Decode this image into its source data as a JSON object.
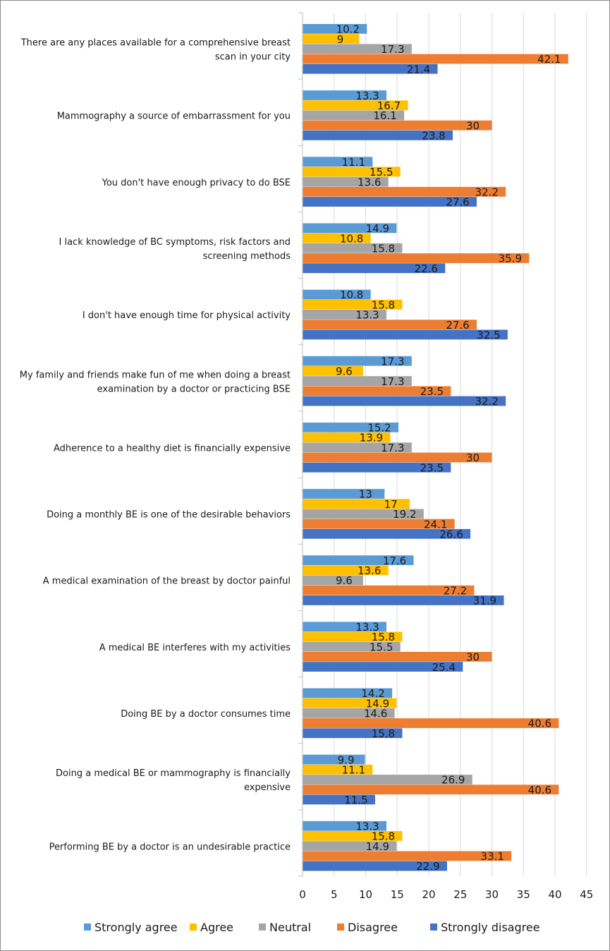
{
  "chart_data": {
    "type": "bar",
    "orientation": "horizontal",
    "title": "",
    "xlabel": "",
    "ylabel": "",
    "xlim": [
      0,
      45
    ],
    "xticks": [
      0,
      5,
      10,
      15,
      20,
      25,
      30,
      35,
      40,
      45
    ],
    "grid": "vertical",
    "legend_position": "bottom",
    "categories": [
      [
        "There are any places available for a comprehensive breast",
        "scan in your city"
      ],
      [
        "Mammography a source of embarrassment for you"
      ],
      [
        "You don't have enough privacy to do BSE"
      ],
      [
        "I lack knowledge of BC symptoms, risk factors and",
        "screening methods"
      ],
      [
        "I don't have enough time for physical activity"
      ],
      [
        "My family and friends make fun of me when doing a breast",
        "examination by a doctor or practicing BSE"
      ],
      [
        "Adherence to a healthy diet is financially expensive"
      ],
      [
        "Doing a monthly BE is one of the desirable behaviors"
      ],
      [
        "A medical examination of the breast by doctor  painful"
      ],
      [
        "A medical BE  interferes with my activities"
      ],
      [
        "Doing   BE by a doctor consumes time"
      ],
      [
        "Doing a medical BE or mammography is financially",
        "expensive"
      ],
      [
        "Performing BE by a doctor is an undesirable practice"
      ]
    ],
    "series": [
      {
        "name": "Strongly agree",
        "color": "#5b9bd5",
        "values": [
          10.2,
          13.3,
          11.1,
          14.9,
          10.8,
          17.3,
          15.2,
          13,
          17.6,
          13.3,
          14.2,
          9.9,
          13.3
        ]
      },
      {
        "name": "Agree",
        "color": "#ffc000",
        "values": [
          9,
          16.7,
          15.5,
          10.8,
          15.8,
          9.6,
          13.9,
          17,
          13.6,
          15.8,
          14.9,
          11.1,
          15.8
        ]
      },
      {
        "name": "Neutral",
        "color": "#a5a5a5",
        "values": [
          17.3,
          16.1,
          13.6,
          15.8,
          13.3,
          17.3,
          17.3,
          19.2,
          9.6,
          15.5,
          14.6,
          26.9,
          14.9
        ]
      },
      {
        "name": "Disagree",
        "color": "#ed7d31",
        "values": [
          42.1,
          30,
          32.2,
          35.9,
          27.6,
          23.5,
          30,
          24.1,
          27.2,
          30,
          40.6,
          40.6,
          33.1
        ]
      },
      {
        "name": "Strongly disagree",
        "color": "#4472c4",
        "values": [
          21.4,
          23.8,
          27.6,
          22.6,
          32.5,
          32.2,
          23.5,
          26.6,
          31.9,
          25.4,
          15.8,
          11.5,
          22.9
        ]
      }
    ]
  }
}
